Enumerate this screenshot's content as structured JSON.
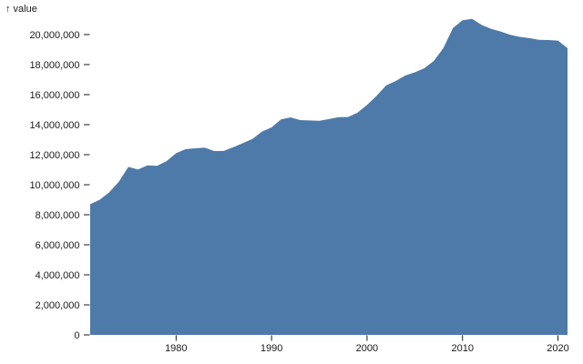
{
  "chart_data": {
    "type": "area",
    "title": "",
    "y_axis_title": "↑ value",
    "xlabel": "",
    "ylabel": "value",
    "series_name": "value",
    "fill_color": "#4d7aa8",
    "text_color": "#1a1a1a",
    "background_color": "#ffffff",
    "grid": false,
    "legend": "none",
    "xlim": [
      1971,
      2021
    ],
    "ylim": [
      0,
      20000000
    ],
    "x_ticks": [
      1980,
      1990,
      2000,
      2010,
      2020
    ],
    "x_tick_labels": [
      "1980",
      "1990",
      "2000",
      "2010",
      "2020"
    ],
    "y_ticks": [
      0,
      2000000,
      4000000,
      6000000,
      8000000,
      10000000,
      12000000,
      14000000,
      16000000,
      18000000,
      20000000
    ],
    "y_tick_labels": [
      "0",
      "2,000,000",
      "4,000,000",
      "6,000,000",
      "8,000,000",
      "10,000,000",
      "12,000,000",
      "14,000,000",
      "16,000,000",
      "18,000,000",
      "20,000,000"
    ],
    "x": [
      1971,
      1972,
      1973,
      1974,
      1975,
      1976,
      1977,
      1978,
      1979,
      1980,
      1981,
      1982,
      1983,
      1984,
      1985,
      1986,
      1987,
      1988,
      1989,
      1990,
      1991,
      1992,
      1993,
      1994,
      1995,
      1996,
      1997,
      1998,
      1999,
      2000,
      2001,
      2002,
      2003,
      2004,
      2005,
      2006,
      2007,
      2008,
      2009,
      2010,
      2011,
      2012,
      2013,
      2014,
      2015,
      2016,
      2017,
      2018,
      2019,
      2020,
      2021
    ],
    "values": [
      8700000,
      9000000,
      9500000,
      10200000,
      11185000,
      11012000,
      11286000,
      11260000,
      11570000,
      12097000,
      12372000,
      12426000,
      12465000,
      12242000,
      12247000,
      12504000,
      12767000,
      13055000,
      13539000,
      13819000,
      14359000,
      14487000,
      14305000,
      14279000,
      14262000,
      14368000,
      14502000,
      14507000,
      14791000,
      15312000,
      15928000,
      16612000,
      16911000,
      17272000,
      17487000,
      17759000,
      18248000,
      19103000,
      20428000,
      20950000,
      21050000,
      20644000,
      20376000,
      20209000,
      19988000,
      19846000,
      19766000,
      19652000,
      19637000,
      19600000,
      19100000
    ]
  }
}
